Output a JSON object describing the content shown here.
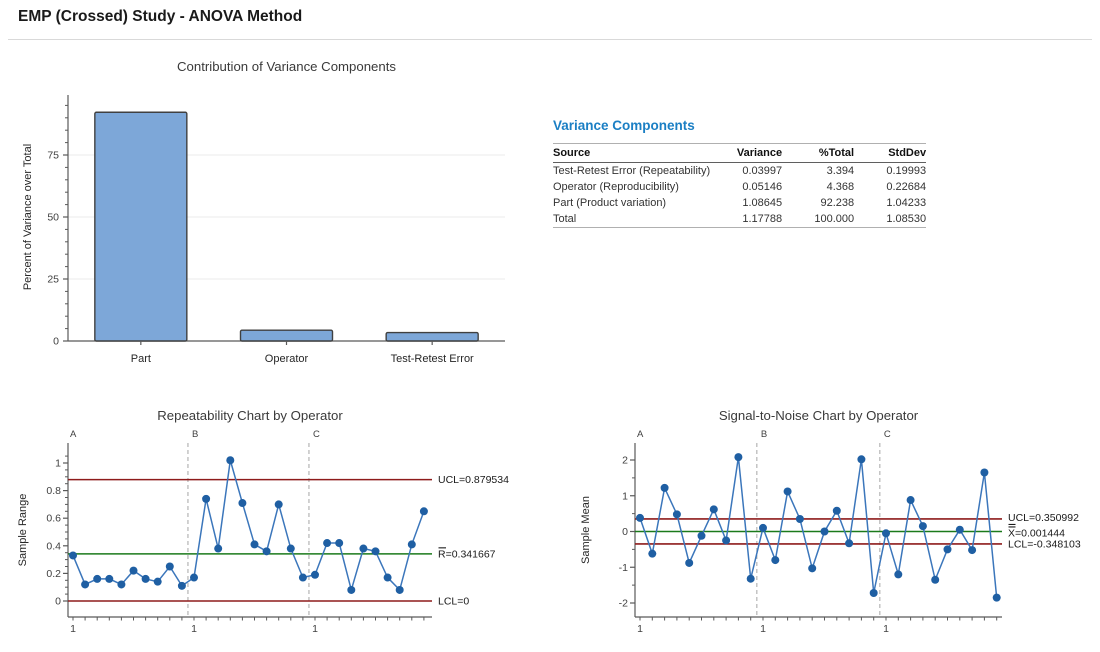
{
  "page": {
    "title": "EMP (Crossed) Study - ANOVA Method"
  },
  "colors": {
    "heading_blue": "#1b7fc4",
    "series_line": "#3b76bb",
    "series_marker": "#1f5fa3",
    "limit_line": "#8e1b1b",
    "center_line": "#1b7a1b",
    "bar_fill": "#7da7d8",
    "bar_stroke": "#404040",
    "axis": "#595959",
    "grid": "#ebebeb",
    "divider_dash": "#a6a6a6",
    "text_dark": "#1a1a1a",
    "text_axis": "#404040"
  },
  "variance_table": {
    "heading": "Variance Components",
    "columns": [
      "Source",
      "Variance",
      "%Total",
      "StdDev"
    ],
    "rows": [
      [
        "Test-Retest Error (Repeatability)",
        "0.03997",
        "3.394",
        "0.19993"
      ],
      [
        "Operator (Reproducibility)",
        "0.05146",
        "4.368",
        "0.22684"
      ],
      [
        "Part (Product variation)",
        "1.08645",
        "92.238",
        "1.04233"
      ],
      [
        "Total",
        "1.17788",
        "100.000",
        "1.08530"
      ]
    ]
  },
  "chart_data": [
    {
      "id": "contribution",
      "type": "bar",
      "title": "Contribution of Variance Components",
      "xlabel": "",
      "ylabel": "Percent of Variance over Total",
      "categories": [
        "Part",
        "Operator",
        "Test-Retest Error"
      ],
      "values": [
        92.238,
        4.368,
        3.394
      ],
      "ylim": [
        0,
        100
      ],
      "yticks": [
        0,
        25,
        50,
        75
      ],
      "minor_step": 5,
      "grid": true
    },
    {
      "id": "repeatability",
      "type": "control",
      "title": "Repeatability Chart by Operator",
      "ylabel": "Sample Range",
      "groups": [
        "A",
        "B",
        "C"
      ],
      "points_per_group": 10,
      "x_group_start_label": "1",
      "values": [
        0.33,
        0.12,
        0.16,
        0.16,
        0.12,
        0.22,
        0.16,
        0.14,
        0.25,
        0.11,
        0.17,
        0.74,
        0.38,
        1.02,
        0.71,
        0.41,
        0.36,
        0.7,
        0.38,
        0.17,
        0.19,
        0.42,
        0.42,
        0.08,
        0.38,
        0.36,
        0.17,
        0.08,
        0.41,
        0.65
      ],
      "ucl": 0.879534,
      "center": 0.341667,
      "lcl": 0,
      "ucl_label": "UCL=0.879534",
      "center_label": "R=0.341667",
      "lcl_label": "LCL=0",
      "center_accent": "overline",
      "yticks": [
        0,
        0.2,
        0.4,
        0.6,
        0.8,
        1
      ],
      "minor_step": 0.05
    },
    {
      "id": "signal",
      "type": "control",
      "title": "Signal-to-Noise Chart by Operator",
      "ylabel": "Sample Mean",
      "groups": [
        "A",
        "B",
        "C"
      ],
      "points_per_group": 10,
      "x_group_start_label": "1",
      "values": [
        0.38,
        -0.62,
        1.22,
        0.48,
        -0.88,
        -0.12,
        0.62,
        -0.25,
        2.08,
        -1.32,
        0.1,
        -0.8,
        1.12,
        0.35,
        -1.03,
        0.0,
        0.58,
        -0.33,
        2.02,
        -1.72,
        -0.05,
        -1.2,
        0.88,
        0.15,
        -1.35,
        -0.5,
        0.05,
        -0.52,
        1.65,
        -1.85
      ],
      "ucl": 0.350992,
      "center": 0.001444,
      "lcl": -0.348103,
      "ucl_label": "UCL=0.350992",
      "center_label": "X=0.001444",
      "lcl_label": "LCL=-0.348103",
      "center_accent": "double-overline",
      "yticks": [
        -2,
        -1,
        0,
        1,
        2
      ],
      "minor_step": 0.5
    }
  ]
}
